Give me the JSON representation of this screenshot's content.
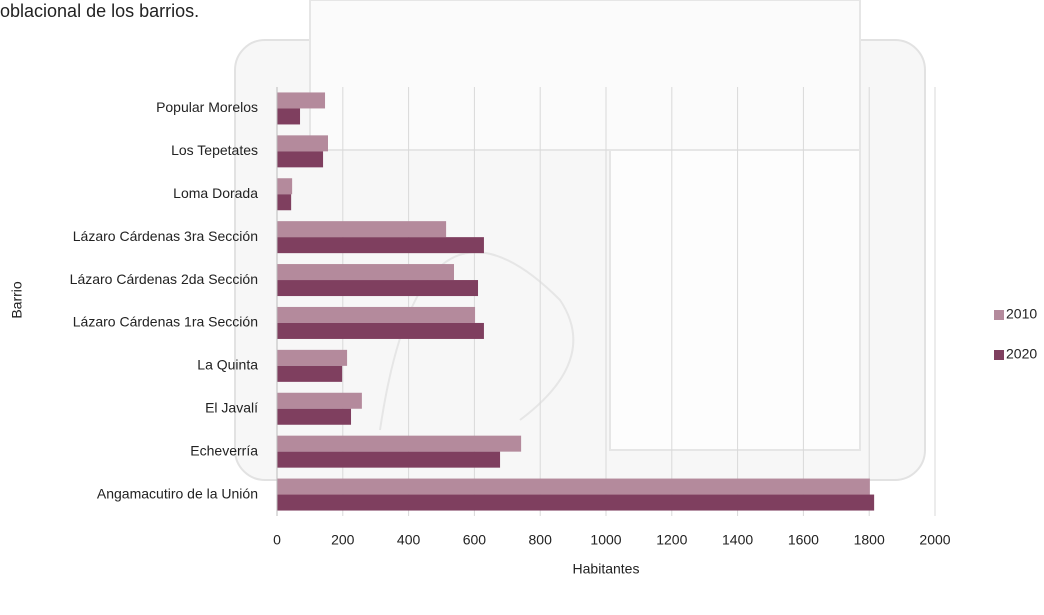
{
  "chart_data": {
    "type": "bar",
    "orientation": "horizontal",
    "title": "oblacional de los barrios.",
    "x_label": "Habitantes",
    "y_label": "Barrio",
    "categories": [
      "Popular Morelos",
      "Los Tepetates",
      "Loma Dorada",
      "Lázaro Cárdenas 3ra Sección",
      "Lázaro Cárdenas 2da Sección",
      "Lázaro Cárdenas 1ra Sección",
      "La Quinta",
      "El Javalí",
      "Echeverría",
      "Angamacutiro de la Unión"
    ],
    "series": [
      {
        "name": "2010",
        "color": "#b48a9c",
        "values": [
          146,
          155,
          46,
          514,
          538,
          602,
          213,
          258,
          742,
          1802
        ]
      },
      {
        "name": "2020",
        "color": "#7f3f5f",
        "values": [
          70,
          140,
          43,
          629,
          611,
          629,
          198,
          225,
          678,
          1815
        ]
      }
    ],
    "xlim": [
      0,
      2000
    ],
    "xticks": [
      0,
      200,
      400,
      600,
      800,
      1000,
      1200,
      1400,
      1600,
      1800,
      2000
    ],
    "grid": true,
    "legend": "right"
  }
}
